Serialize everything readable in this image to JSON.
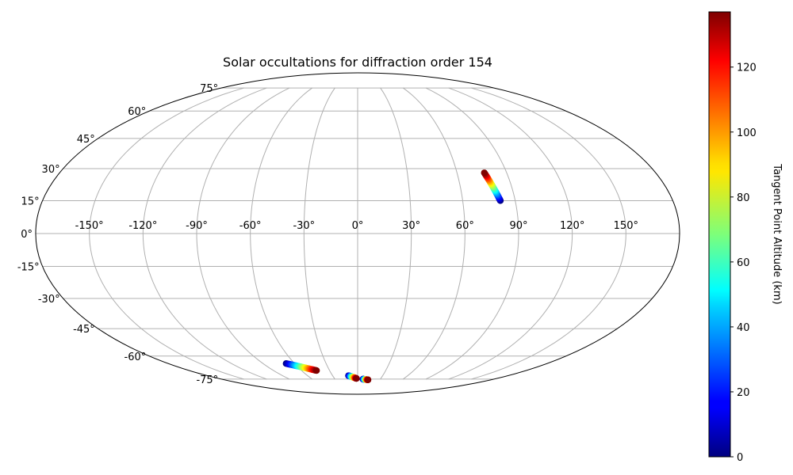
{
  "chart_data": {
    "type": "scatter",
    "projection": "mollweide",
    "title": "Solar occultations for diffraction order 154",
    "grid": true,
    "longitude_ticks": [
      "-150°",
      "-120°",
      "-90°",
      "-60°",
      "-30°",
      "0°",
      "30°",
      "60°",
      "90°",
      "120°",
      "150°"
    ],
    "longitude_tick_values": [
      -150,
      -120,
      -90,
      -60,
      -30,
      0,
      30,
      60,
      90,
      120,
      150
    ],
    "latitude_ticks": [
      "75°",
      "60°",
      "45°",
      "30°",
      "15°",
      "0°",
      "-15°",
      "-30°",
      "-45°",
      "-60°",
      "-75°"
    ],
    "latitude_tick_values": [
      75,
      60,
      45,
      30,
      15,
      0,
      -15,
      -30,
      -45,
      -60,
      -75
    ],
    "colorbar": {
      "label": "Tangent Point Altitude (km)",
      "colormap": "jet",
      "range": [
        0,
        137
      ],
      "ticks": [
        "0",
        "20",
        "40",
        "60",
        "80",
        "100",
        "120"
      ],
      "tick_values": [
        0,
        20,
        40,
        60,
        80,
        100,
        120
      ]
    },
    "series": [
      {
        "lon_range": [
          81.5,
          76.5
        ],
        "lat_range": [
          15.0,
          28.0
        ],
        "altitude_range": [
          0,
          137
        ],
        "points": 40
      },
      {
        "lon_range": [
          -68.0,
          -44.0
        ],
        "lat_range": [
          -64.5,
          -69.0
        ],
        "altitude_range": [
          0,
          137
        ],
        "points": 40
      },
      {
        "lon_range": [
          -11.0,
          -1.5
        ],
        "lat_range": [
          -72.5,
          -74.5
        ],
        "altitude_range": [
          0,
          137
        ],
        "points": 40
      },
      {
        "lon_range": [
          7.0,
          14.0
        ],
        "lat_range": [
          -75.0,
          -75.5
        ],
        "altitude_range": [
          0,
          137
        ],
        "points": 40
      }
    ]
  }
}
